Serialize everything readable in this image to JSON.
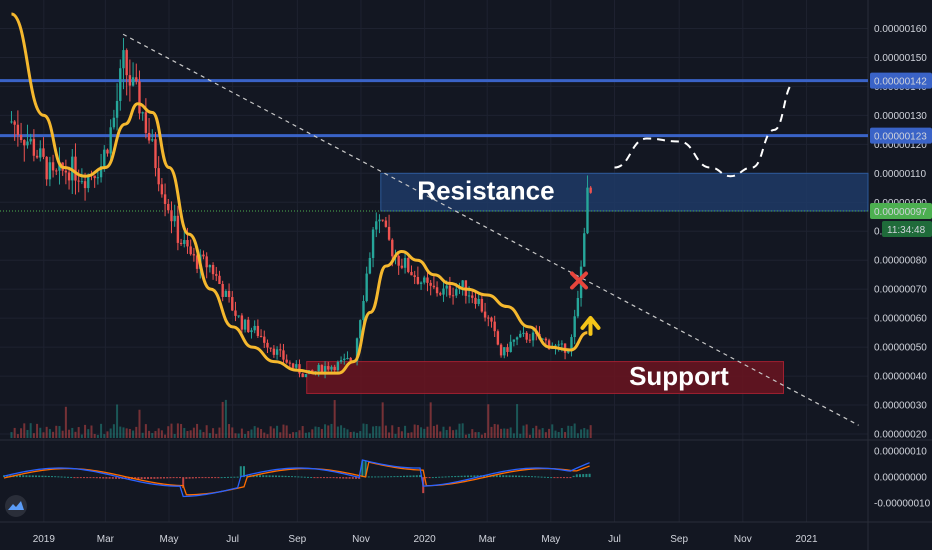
{
  "colors": {
    "background": "#131722",
    "grid": "#1e2230",
    "candle_up": "#26a69a",
    "candle_down": "#ef5350",
    "ma_line": "#f5b82e",
    "level_line": "#3a63c7",
    "resistance_zone": "#1f3a66",
    "support_zone": "#6b1420",
    "trendline": "#c8c8c8",
    "price_line": "#4caf50",
    "macd_line": "#2962ff",
    "signal_line": "#ff6d00",
    "cross_mark": "#e8453c",
    "arrow": "#f5c518",
    "projection": "#ffffff"
  },
  "chart_data": {
    "type": "candlestick",
    "price_axis": {
      "min": 2e-07,
      "max": 1.65e-06,
      "ticks": [
        "0.00000160",
        "0.00000150",
        "0.00000140",
        "0.00000130",
        "0.00000120",
        "0.00000110",
        "0.00000100",
        "0.00000090",
        "0.00000080",
        "0.00000070",
        "0.00000060",
        "0.00000050",
        "0.00000040",
        "0.00000030",
        "0.00000020"
      ]
    },
    "time_axis": {
      "ticks": [
        "2019",
        "Mar",
        "May",
        "Jul",
        "Sep",
        "Nov",
        "2020",
        "Mar",
        "May",
        "Jul",
        "Sep",
        "Nov",
        "2021"
      ],
      "tick_dates": [
        "2019-01-01",
        "2019-03-01",
        "2019-05-01",
        "2019-07-01",
        "2019-09-01",
        "2019-11-01",
        "2020-01-01",
        "2020-03-01",
        "2020-05-01",
        "2020-07-01",
        "2020-09-01",
        "2020-11-01",
        "2021-01-01"
      ]
    },
    "close_series_estimated": {
      "dates": [
        "2018-12-01",
        "2018-12-20",
        "2019-01-10",
        "2019-01-25",
        "2019-02-10",
        "2019-02-25",
        "2019-03-10",
        "2019-03-18",
        "2019-03-25",
        "2019-04-05",
        "2019-04-15",
        "2019-04-25",
        "2019-05-10",
        "2019-05-25",
        "2019-06-10",
        "2019-06-25",
        "2019-07-10",
        "2019-07-25",
        "2019-08-10",
        "2019-08-25",
        "2019-09-10",
        "2019-09-25",
        "2019-10-10",
        "2019-10-25",
        "2019-11-05",
        "2019-11-15",
        "2019-11-25",
        "2019-12-05",
        "2019-12-20",
        "2020-01-05",
        "2020-01-20",
        "2020-02-05",
        "2020-02-20",
        "2020-03-05",
        "2020-03-15",
        "2020-03-25",
        "2020-04-10",
        "2020-04-25",
        "2020-05-10",
        "2020-05-20",
        "2020-05-28",
        "2020-06-03",
        "2020-06-07",
        "2020-06-10"
      ],
      "close": [
        1.28e-06,
        1.2e-06,
        1.08e-06,
        1.12e-06,
        1.09e-06,
        1.13e-06,
        1.3e-06,
        1.48e-06,
        1.41e-06,
        1.32e-06,
        1.18e-06,
        1.05e-06,
        8.8e-07,
        8e-07,
        7.8e-07,
        6.7e-07,
        5.8e-07,
        5.5e-07,
        4.9e-07,
        4.4e-07,
        4e-07,
        4.3e-07,
        4.4e-07,
        4.6e-07,
        7.2e-07,
        9.5e-07,
        8.8e-07,
        8.1e-07,
        7.6e-07,
        7e-07,
        6.9e-07,
        7.1e-07,
        6.7e-07,
        5.7e-07,
        4.7e-07,
        5.2e-07,
        5.4e-07,
        5.2e-07,
        4.9e-07,
        5.1e-07,
        6.8e-07,
        9.7e-07,
        1.06e-06,
        9.7e-07
      ]
    },
    "moving_average_estimated": {
      "dates": [
        "2018-12-01",
        "2019-01-01",
        "2019-01-20",
        "2019-02-10",
        "2019-03-01",
        "2019-03-20",
        "2019-04-01",
        "2019-04-15",
        "2019-05-01",
        "2019-05-20",
        "2019-06-10",
        "2019-07-01",
        "2019-07-20",
        "2019-08-10",
        "2019-09-01",
        "2019-09-20",
        "2019-10-10",
        "2019-10-25",
        "2019-11-10",
        "2019-11-25",
        "2019-12-10",
        "2019-12-25",
        "2020-01-10",
        "2020-01-25",
        "2020-02-10",
        "2020-03-01",
        "2020-03-20",
        "2020-04-10",
        "2020-04-30",
        "2020-05-20",
        "2020-06-05"
      ],
      "values": [
        1.65e-06,
        1.3e-06,
        1.12e-06,
        1.09e-06,
        1.12e-06,
        1.27e-06,
        1.34e-06,
        1.31e-06,
        1.12e-06,
        8.9e-07,
        7e-07,
        5.7e-07,
        5e-07,
        4.5e-07,
        4.2e-07,
        4.1e-07,
        4.1e-07,
        4.5e-07,
        6.2e-07,
        7.8e-07,
        8.3e-07,
        8e-07,
        7.5e-07,
        7.2e-07,
        7e-07,
        6.8e-07,
        6.4e-07,
        5.7e-07,
        5e-07,
        4.9e-07,
        5.5e-07
      ]
    },
    "horizontal_levels": [
      {
        "price": 1.42e-06,
        "label": "0.00000142"
      },
      {
        "price": 1.23e-06,
        "label": "0.00000123"
      }
    ],
    "current_price": {
      "price": 9.7e-07,
      "label": "0.00000097",
      "countdown": "11:34:48"
    },
    "zones": [
      {
        "name": "Resistance",
        "top": 1.1e-06,
        "bottom": 9.7e-07,
        "start": "2019-11-20"
      },
      {
        "name": "Support",
        "top": 4.5e-07,
        "bottom": 3.4e-07,
        "start": "2019-09-10",
        "end": "2020-12-10"
      }
    ],
    "trendline": {
      "start": {
        "date": "2019-03-18",
        "price": 1.58e-06
      },
      "end": {
        "date": "2021-02-20",
        "price": 2.3e-07
      }
    },
    "projection_path": {
      "dates": [
        "2020-07-01",
        "2020-08-01",
        "2020-09-01",
        "2020-10-01",
        "2020-10-20",
        "2020-11-10",
        "2020-12-01",
        "2020-12-20"
      ],
      "prices": [
        1.12e-06,
        1.22e-06,
        1.21e-06,
        1.12e-06,
        1.09e-06,
        1.12e-06,
        1.25e-06,
        1.41e-06
      ]
    },
    "macd_axis": {
      "ticks": [
        "0.00000010",
        "0.00000000",
        "-0.00000010"
      ],
      "min": -1.5e-07,
      "max": 1.2e-07
    }
  }
}
